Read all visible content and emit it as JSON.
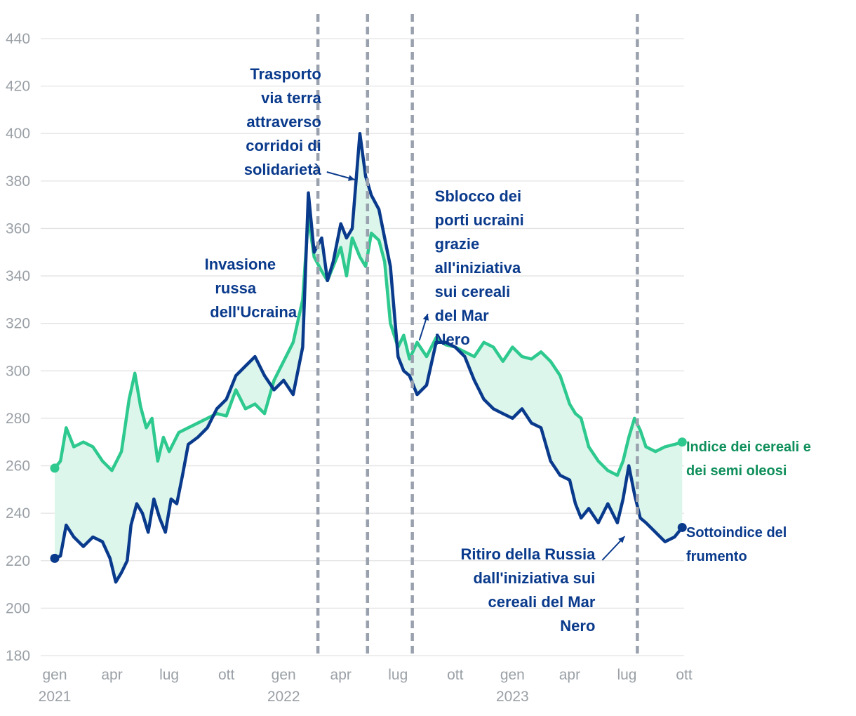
{
  "chart_data": {
    "type": "line",
    "title": "",
    "xlabel": "",
    "ylabel": "",
    "ylim": [
      180,
      440
    ],
    "yticks": [
      180,
      200,
      220,
      240,
      260,
      280,
      300,
      320,
      340,
      360,
      380,
      400,
      420,
      440
    ],
    "xlim": [
      0,
      33
    ],
    "xticks": [
      {
        "x": 0,
        "label": "gen",
        "sub": "2021"
      },
      {
        "x": 3,
        "label": "apr",
        "sub": ""
      },
      {
        "x": 6,
        "label": "lug",
        "sub": ""
      },
      {
        "x": 9,
        "label": "ott",
        "sub": ""
      },
      {
        "x": 12,
        "label": "gen",
        "sub": "2022"
      },
      {
        "x": 15,
        "label": "apr",
        "sub": ""
      },
      {
        "x": 18,
        "label": "lug",
        "sub": ""
      },
      {
        "x": 21,
        "label": "ott",
        "sub": ""
      },
      {
        "x": 24,
        "label": "gen",
        "sub": "2023"
      },
      {
        "x": 27,
        "label": "apr",
        "sub": ""
      },
      {
        "x": 30,
        "label": "lug",
        "sub": ""
      },
      {
        "x": 33,
        "label": "ott",
        "sub": ""
      }
    ],
    "series": [
      {
        "name": "Indice dei cereali e dei semi oleosi",
        "color": "#2ec98e",
        "x": [
          0,
          0.3,
          0.6,
          1.0,
          1.5,
          2.0,
          2.5,
          3.0,
          3.5,
          3.9,
          4.2,
          4.5,
          4.8,
          5.1,
          5.4,
          5.7,
          6.0,
          6.5,
          7.0,
          7.5,
          8.0,
          8.5,
          9.0,
          9.5,
          10.0,
          10.5,
          11.0,
          11.5,
          12.0,
          12.5,
          13.0,
          13.3,
          13.6,
          14.0,
          14.3,
          14.6,
          15.0,
          15.3,
          15.6,
          16.0,
          16.3,
          16.6,
          17.0,
          17.3,
          17.6,
          18.0,
          18.3,
          18.6,
          19.0,
          19.5,
          20.0,
          20.5,
          21.0,
          21.5,
          22.0,
          22.5,
          23.0,
          23.5,
          24.0,
          24.5,
          25.0,
          25.5,
          26.0,
          26.5,
          27.0,
          27.3,
          27.6,
          28.0,
          28.5,
          29.0,
          29.5,
          29.8,
          30.1,
          30.4,
          30.7,
          31.0,
          31.5,
          32.0,
          32.5,
          32.9
        ],
        "values": [
          259,
          262,
          276,
          268,
          270,
          268,
          262,
          258,
          266,
          288,
          299,
          285,
          276,
          280,
          262,
          272,
          266,
          274,
          276,
          278,
          280,
          282,
          281,
          292,
          284,
          286,
          282,
          296,
          304,
          312,
          330,
          365,
          348,
          342,
          338,
          344,
          352,
          340,
          356,
          348,
          344,
          358,
          355,
          346,
          320,
          310,
          315,
          305,
          312,
          306,
          314,
          311,
          310,
          308,
          306,
          312,
          310,
          304,
          310,
          306,
          305,
          308,
          304,
          298,
          286,
          282,
          280,
          268,
          262,
          258,
          256,
          262,
          272,
          280,
          275,
          268,
          266,
          268,
          269,
          270
        ]
      },
      {
        "name": "Sottoindice del frumento",
        "color": "#0a3a8c",
        "x": [
          0,
          0.3,
          0.6,
          1.0,
          1.5,
          2.0,
          2.5,
          2.9,
          3.2,
          3.5,
          3.8,
          4.0,
          4.3,
          4.6,
          4.9,
          5.2,
          5.5,
          5.8,
          6.1,
          6.4,
          6.7,
          7.0,
          7.5,
          8.0,
          8.5,
          9.0,
          9.5,
          10.0,
          10.5,
          11.0,
          11.5,
          12.0,
          12.5,
          13.0,
          13.3,
          13.6,
          14.0,
          14.3,
          14.6,
          15.0,
          15.3,
          15.6,
          16.0,
          16.3,
          16.6,
          17.0,
          17.3,
          17.6,
          18.0,
          18.3,
          18.6,
          19.0,
          19.5,
          20.0,
          20.5,
          21.0,
          21.5,
          22.0,
          22.5,
          23.0,
          23.5,
          24.0,
          24.5,
          25.0,
          25.5,
          26.0,
          26.5,
          27.0,
          27.3,
          27.6,
          28.0,
          28.5,
          29.0,
          29.5,
          29.8,
          30.1,
          30.4,
          30.7,
          31.0,
          31.5,
          32.0,
          32.5,
          32.9
        ],
        "values": [
          221,
          222,
          235,
          230,
          226,
          230,
          228,
          221,
          211,
          215,
          220,
          235,
          244,
          240,
          232,
          246,
          238,
          232,
          246,
          244,
          256,
          269,
          272,
          276,
          284,
          288,
          298,
          302,
          306,
          298,
          292,
          296,
          290,
          310,
          375,
          350,
          356,
          338,
          346,
          362,
          356,
          360,
          400,
          382,
          374,
          368,
          356,
          344,
          306,
          300,
          298,
          290,
          294,
          312,
          312,
          310,
          306,
          296,
          288,
          284,
          282,
          280,
          284,
          278,
          276,
          262,
          256,
          254,
          244,
          238,
          242,
          236,
          244,
          236,
          246,
          260,
          248,
          238,
          236,
          232,
          228,
          230,
          234
        ]
      }
    ],
    "events": [
      {
        "x": 13.8,
        "label": "Invasione russa dell'Ucraina"
      },
      {
        "x": 16.4,
        "label": "Trasporto via terra attraverso corridoi di solidarietà"
      },
      {
        "x": 18.75,
        "label": "Sblocco dei porti ucraini grazie all'iniziativa sui cereali del Mar Nero"
      },
      {
        "x": 30.55,
        "label": "Ritiro della Russia dall'iniziativa sui cereali del Mar Nero"
      }
    ],
    "annotations": {
      "invasione": [
        "Invasione",
        "russa",
        "dell'Ucraina"
      ],
      "trasporto": [
        "Trasporto",
        "via terra",
        "attraverso",
        "corridoi di",
        "solidarietà"
      ],
      "sblocco": [
        "Sblocco dei",
        "porti ucraini",
        "grazie",
        "all'iniziativa",
        "sui cereali",
        "del Mar",
        "Nero"
      ],
      "ritiro": [
        "Ritiro della Russia",
        "dall'iniziativa sui",
        "cereali del Mar",
        "Nero"
      ]
    },
    "legend": {
      "green": [
        "Indice dei cereali e",
        "dei semi oleosi"
      ],
      "blue": [
        "Sottoindice del",
        "frumento"
      ]
    },
    "fill_color": "#dcf6ec",
    "grid": true
  }
}
